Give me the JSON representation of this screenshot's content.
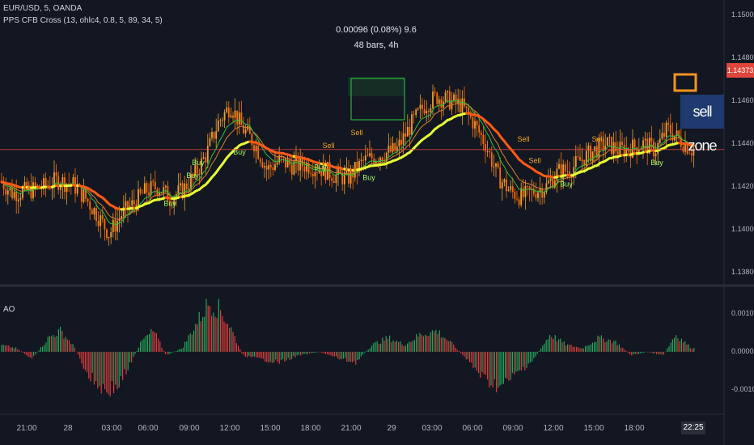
{
  "header": {
    "symbol": "EUR/USD, 5, OANDA",
    "indicator": "PPS CFB Cross (13, ohlc4, 0.8, 5, 89, 34, 5)"
  },
  "measure": {
    "line1": "0.00096 (0.08%) 9.6",
    "line2": "48 bars, 4h"
  },
  "annotations": {
    "sell_zone": "sell zone",
    "buy": "Buy",
    "sell": "Sell"
  },
  "price_tag": "1.14373",
  "oscillator": {
    "label": "AO"
  },
  "colors": {
    "background": "#131722",
    "up_candle": "#f0a030",
    "down_candle": "#ff6d00",
    "slow_line_rising": "#e6ff32",
    "slow_line_falling": "#ff5a14",
    "fast_line": "#29c23a",
    "signal_line": "#d9822b",
    "ao_up": "#26a65b",
    "ao_down": "#e03c3c",
    "price_line": "#e0463c",
    "measure_box": "#2ecc40",
    "sell_zone_bg": "#1e3a6e"
  },
  "chart_data": [
    {
      "type": "candlestick",
      "title": "EUR/USD, 5, OANDA",
      "x_ticks": [
        "21:00",
        "28",
        "03:00",
        "06:00",
        "09:00",
        "12:00",
        "15:00",
        "18:00",
        "21:00",
        "29",
        "03:00",
        "06:00",
        "09:00",
        "12:00",
        "15:00",
        "18:00",
        "22:25"
      ],
      "y_ticks": [
        "1.13800",
        "1.14000",
        "1.14200",
        "1.14400",
        "1.14600",
        "1.14800",
        "1.15000"
      ],
      "ylim": [
        1.1375,
        1.1507
      ],
      "current_price": 1.14373,
      "approx_close_path": [
        [
          0,
          1.1423
        ],
        [
          15,
          1.1417
        ],
        [
          35,
          1.1418
        ],
        [
          55,
          1.142
        ],
        [
          70,
          1.1423
        ],
        [
          90,
          1.1421
        ],
        [
          105,
          1.1415
        ],
        [
          120,
          1.1407
        ],
        [
          135,
          1.1398
        ],
        [
          150,
          1.1407
        ],
        [
          165,
          1.1412
        ],
        [
          180,
          1.1418
        ],
        [
          195,
          1.142
        ],
        [
          210,
          1.1415
        ],
        [
          225,
          1.1418
        ],
        [
          240,
          1.1425
        ],
        [
          255,
          1.1435
        ],
        [
          270,
          1.145
        ],
        [
          285,
          1.1458
        ],
        [
          300,
          1.1447
        ],
        [
          315,
          1.144
        ],
        [
          330,
          1.1428
        ],
        [
          345,
          1.1432
        ],
        [
          360,
          1.143
        ],
        [
          380,
          1.143
        ],
        [
          400,
          1.1428
        ],
        [
          415,
          1.1425
        ],
        [
          430,
          1.1424
        ],
        [
          450,
          1.1432
        ],
        [
          470,
          1.1435
        ],
        [
          490,
          1.1437
        ],
        [
          510,
          1.145
        ],
        [
          525,
          1.1458
        ],
        [
          540,
          1.1462
        ],
        [
          555,
          1.146
        ],
        [
          570,
          1.1458
        ],
        [
          585,
          1.145
        ],
        [
          600,
          1.144
        ],
        [
          615,
          1.1425
        ],
        [
          630,
          1.1418
        ],
        [
          645,
          1.1415
        ],
        [
          660,
          1.1418
        ],
        [
          675,
          1.142
        ],
        [
          690,
          1.1427
        ],
        [
          705,
          1.1428
        ],
        [
          720,
          1.1433
        ],
        [
          735,
          1.1437
        ],
        [
          750,
          1.144
        ],
        [
          765,
          1.1437
        ],
        [
          780,
          1.1438
        ],
        [
          795,
          1.144
        ],
        [
          810,
          1.1437
        ],
        [
          825,
          1.1447
        ],
        [
          840,
          1.1442
        ],
        [
          855,
          1.14373
        ]
      ],
      "buy_signals": [
        [
          210,
          1.1411
        ],
        [
          238,
          1.1424
        ],
        [
          245,
          1.143
        ],
        [
          296,
          1.1435
        ],
        [
          396,
          1.1428
        ],
        [
          456,
          1.1423
        ],
        [
          700,
          1.142
        ],
        [
          812,
          1.143
        ]
      ],
      "sell_signals": [
        [
          406,
          1.1438
        ],
        [
          441,
          1.1444
        ],
        [
          647,
          1.1441
        ],
        [
          661,
          1.1431
        ],
        [
          739,
          1.1441
        ]
      ]
    },
    {
      "type": "bar",
      "title": "AO",
      "y_ticks": [
        "0.0010",
        "0.0000",
        "-0.0010"
      ],
      "ylim": [
        -0.0015,
        0.0016
      ],
      "approx_envelope": [
        [
          0,
          0.0002
        ],
        [
          20,
          0.0001
        ],
        [
          40,
          -0.0002
        ],
        [
          60,
          0.0004
        ],
        [
          75,
          0.0006
        ],
        [
          90,
          0.0002
        ],
        [
          110,
          -0.0007
        ],
        [
          130,
          -0.0011
        ],
        [
          145,
          -0.001
        ],
        [
          160,
          -0.0004
        ],
        [
          175,
          0.0003
        ],
        [
          190,
          0.0006
        ],
        [
          205,
          -0.0001
        ],
        [
          225,
          0.0001
        ],
        [
          245,
          0.0009
        ],
        [
          258,
          0.0014
        ],
        [
          272,
          0.0012
        ],
        [
          285,
          0.0007
        ],
        [
          300,
          -0.0001
        ],
        [
          320,
          -0.0002
        ],
        [
          345,
          -0.0003
        ],
        [
          370,
          -0.0001
        ],
        [
          395,
          0.0
        ],
        [
          420,
          -0.0002
        ],
        [
          440,
          -0.0003
        ],
        [
          460,
          0.0002
        ],
        [
          480,
          0.0004
        ],
        [
          500,
          0.0002
        ],
        [
          520,
          0.0005
        ],
        [
          540,
          0.0006
        ],
        [
          560,
          0.0002
        ],
        [
          580,
          -0.0003
        ],
        [
          600,
          -0.0008
        ],
        [
          620,
          -0.001
        ],
        [
          640,
          -0.0006
        ],
        [
          660,
          -0.0002
        ],
        [
          680,
          0.0005
        ],
        [
          700,
          0.0002
        ],
        [
          720,
          0.0001
        ],
        [
          740,
          0.0004
        ],
        [
          760,
          0.0003
        ],
        [
          780,
          -0.0001
        ],
        [
          800,
          0.0
        ],
        [
          820,
          -0.0001
        ],
        [
          835,
          0.0005
        ],
        [
          855,
          0.0001
        ]
      ]
    }
  ]
}
